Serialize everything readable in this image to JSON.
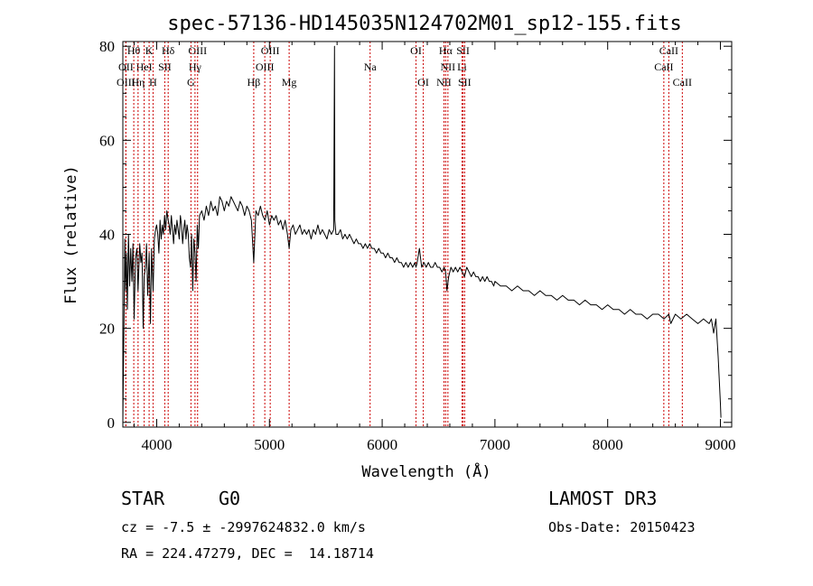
{
  "chart_data": {
    "type": "line",
    "title": "spec-57136-HD145035N124702M01_sp12-155.fits",
    "xlabel": "Wavelength (Å)",
    "ylabel": "Flux (relative)",
    "xlim": [
      3700,
      9100
    ],
    "ylim": [
      -1,
      81
    ],
    "xticks": [
      4000,
      5000,
      6000,
      7000,
      8000,
      9000
    ],
    "yticks": [
      0,
      20,
      40,
      60,
      80
    ],
    "series": [
      {
        "name": "spectrum",
        "x": [
          3700,
          3705,
          3712,
          3718,
          3725,
          3732,
          3740,
          3750,
          3760,
          3770,
          3780,
          3790,
          3800,
          3812,
          3825,
          3835,
          3850,
          3860,
          3870,
          3880,
          3889,
          3900,
          3910,
          3920,
          3933,
          3945,
          3955,
          3968,
          3980,
          3990,
          4000,
          4010,
          4020,
          4030,
          4040,
          4050,
          4060,
          4070,
          4080,
          4090,
          4102,
          4110,
          4120,
          4130,
          4140,
          4150,
          4160,
          4170,
          4180,
          4190,
          4200,
          4210,
          4220,
          4230,
          4240,
          4250,
          4260,
          4270,
          4280,
          4290,
          4300,
          4310,
          4320,
          4330,
          4340,
          4350,
          4360,
          4370,
          4380,
          4400,
          4420,
          4440,
          4460,
          4480,
          4500,
          4520,
          4540,
          4560,
          4580,
          4600,
          4620,
          4640,
          4660,
          4680,
          4700,
          4720,
          4740,
          4760,
          4780,
          4800,
          4820,
          4840,
          4861,
          4880,
          4900,
          4920,
          4940,
          4960,
          4980,
          5000,
          5020,
          5040,
          5060,
          5080,
          5100,
          5120,
          5140,
          5160,
          5175,
          5190,
          5210,
          5230,
          5250,
          5270,
          5290,
          5310,
          5330,
          5350,
          5370,
          5390,
          5410,
          5430,
          5450,
          5470,
          5490,
          5510,
          5530,
          5550,
          5570,
          5577,
          5580,
          5590,
          5610,
          5630,
          5650,
          5670,
          5690,
          5710,
          5730,
          5750,
          5770,
          5790,
          5810,
          5830,
          5850,
          5870,
          5890,
          5910,
          5930,
          5950,
          5970,
          5990,
          6010,
          6030,
          6050,
          6070,
          6090,
          6110,
          6130,
          6150,
          6170,
          6190,
          6210,
          6230,
          6250,
          6270,
          6290,
          6300,
          6310,
          6330,
          6350,
          6370,
          6390,
          6410,
          6430,
          6450,
          6470,
          6490,
          6510,
          6530,
          6550,
          6563,
          6575,
          6590,
          6610,
          6630,
          6650,
          6670,
          6690,
          6710,
          6730,
          6750,
          6770,
          6790,
          6810,
          6830,
          6850,
          6870,
          6890,
          6910,
          6930,
          6950,
          6970,
          6990,
          7000,
          7050,
          7100,
          7150,
          7200,
          7250,
          7300,
          7350,
          7400,
          7450,
          7500,
          7550,
          7600,
          7650,
          7700,
          7750,
          7800,
          7850,
          7900,
          7950,
          8000,
          8050,
          8100,
          8150,
          8200,
          8250,
          8300,
          8350,
          8400,
          8450,
          8500,
          8542,
          8560,
          8600,
          8650,
          8700,
          8750,
          8800,
          8850,
          8900,
          8920,
          8940,
          8960,
          8980,
          9000,
          9005
        ],
        "y": [
          0,
          11,
          26,
          39,
          28,
          36,
          24,
          40,
          29,
          37,
          30,
          38,
          22,
          35,
          37,
          28,
          38,
          34,
          36,
          20,
          31,
          33,
          38,
          27,
          36,
          21,
          37,
          28,
          39,
          41,
          42,
          40,
          36,
          43,
          39,
          42,
          40,
          44,
          41,
          45,
          43,
          42,
          40,
          44,
          41,
          38,
          42,
          40,
          43,
          41,
          39,
          44,
          42,
          38,
          41,
          43,
          39,
          42,
          40,
          35,
          33,
          40,
          28,
          39,
          36,
          30,
          42,
          37,
          44,
          45,
          43,
          46,
          44,
          47,
          45,
          46,
          44,
          48,
          47,
          45,
          47,
          46,
          48,
          47,
          46,
          45,
          47,
          46,
          44,
          46,
          45,
          43,
          34,
          45,
          44,
          46,
          44,
          43,
          45,
          42,
          44,
          43,
          44,
          42,
          43,
          41,
          43,
          40,
          37,
          41,
          42,
          40,
          41,
          42,
          40,
          41,
          40,
          41,
          39,
          41,
          40,
          42,
          40,
          41,
          40,
          39,
          41,
          40,
          41,
          80,
          43,
          40,
          40,
          41,
          39,
          40,
          39,
          40,
          39,
          38,
          39,
          38,
          38,
          37,
          38,
          37,
          38,
          37,
          37,
          36,
          37,
          36,
          36,
          35,
          36,
          35,
          35,
          34,
          35,
          34,
          34,
          33,
          34,
          33,
          34,
          33,
          34,
          33,
          34,
          37,
          33,
          34,
          33,
          34,
          33,
          33,
          34,
          33,
          33,
          32,
          33,
          32,
          28,
          31,
          33,
          32,
          33,
          32,
          33,
          32,
          31,
          33,
          32,
          31,
          32,
          31,
          31,
          30,
          31,
          30,
          31,
          30,
          30,
          29,
          30,
          29,
          29,
          28,
          29,
          28,
          28,
          27,
          28,
          27,
          27,
          26,
          27,
          26,
          26,
          25,
          26,
          25,
          25,
          24,
          25,
          24,
          24,
          23,
          24,
          23,
          23,
          22,
          23,
          23,
          22,
          23,
          21,
          23,
          22,
          23,
          22,
          21,
          22,
          21,
          22,
          19,
          22,
          14,
          4,
          1
        ]
      }
    ],
    "spectral_lines": [
      {
        "label": "Hθ",
        "x": 3797,
        "row": 0
      },
      {
        "label": "K",
        "x": 3933,
        "row": 0
      },
      {
        "label": "Hδ",
        "x": 4102,
        "row": 0
      },
      {
        "label": "OIII",
        "x": 4363,
        "row": 0
      },
      {
        "label": "OIII",
        "x": 5007,
        "row": 0
      },
      {
        "label": "OI",
        "x": 6300,
        "row": 0
      },
      {
        "label": "Hα",
        "x": 6563,
        "row": 0
      },
      {
        "label": "SII",
        "x": 6717,
        "row": 0
      },
      {
        "label": "CaII",
        "x": 8542,
        "row": 0
      },
      {
        "label": "OII",
        "x": 3727,
        "row": 1
      },
      {
        "label": "HeI",
        "x": 3889,
        "row": 1
      },
      {
        "label": "SII",
        "x": 4072,
        "row": 1
      },
      {
        "label": "Hγ",
        "x": 4340,
        "row": 1
      },
      {
        "label": "OIII",
        "x": 4959,
        "row": 1
      },
      {
        "label": "Na",
        "x": 5893,
        "row": 1
      },
      {
        "label": "NII",
        "x": 6583,
        "row": 1
      },
      {
        "label": "Li",
        "x": 6708,
        "row": 1
      },
      {
        "label": "CaII",
        "x": 8498,
        "row": 1
      },
      {
        "label": "OIII",
        "x": 3727,
        "row": 2
      },
      {
        "label": "Hη",
        "x": 3835,
        "row": 2
      },
      {
        "label": "H",
        "x": 3968,
        "row": 2
      },
      {
        "label": "G",
        "x": 4304,
        "row": 2
      },
      {
        "label": "Hβ",
        "x": 4861,
        "row": 2
      },
      {
        "label": "Mg",
        "x": 5175,
        "row": 2
      },
      {
        "label": "OI",
        "x": 6364,
        "row": 2
      },
      {
        "label": "NII",
        "x": 6548,
        "row": 2
      },
      {
        "label": "SII",
        "x": 6731,
        "row": 2
      },
      {
        "label": "CaII",
        "x": 8662,
        "row": 2
      }
    ],
    "line_color": "#cc0000",
    "curve_color": "#000000"
  },
  "info": {
    "object_class": "STAR",
    "subclass": "G0",
    "survey": "LAMOST DR3",
    "cz_line": "cz = -7.5 ± -2997624832.0 km/s",
    "obs_date": "Obs-Date: 20150423",
    "coords": "RA = 224.47279, DEC =  14.18714"
  }
}
